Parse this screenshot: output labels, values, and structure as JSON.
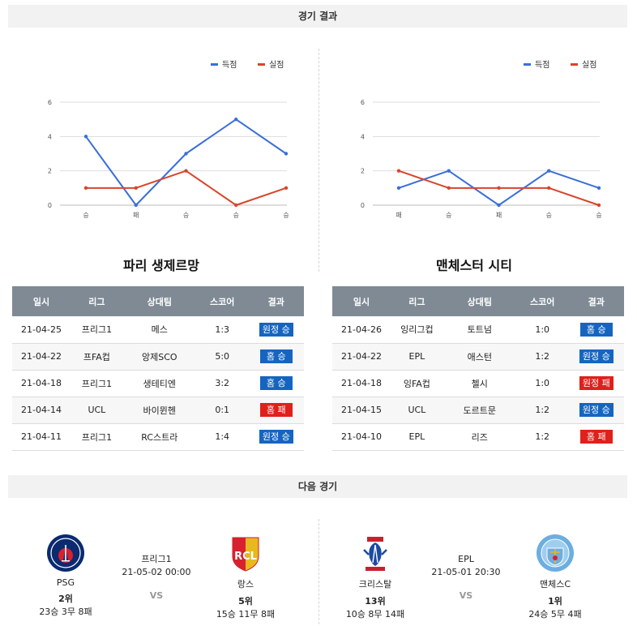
{
  "headers": {
    "results": "경기 결과",
    "next": "다음 경기"
  },
  "legend": {
    "scored": "득점",
    "conceded": "실점"
  },
  "colors": {
    "scored": "#3a6fd8",
    "conceded": "#d8452b",
    "home_win": "#1565c0",
    "away_win": "#1565c0",
    "loss": "#e0201b"
  },
  "teams": [
    {
      "name": "파리 생제르망",
      "columns": [
        "일시",
        "리그",
        "상대팀",
        "스코어",
        "결과"
      ],
      "matches": [
        {
          "date": "21-04-25",
          "league": "프리그1",
          "opponent": "메스",
          "score": "1:3",
          "result": "원정 승",
          "type": "away_win"
        },
        {
          "date": "21-04-22",
          "league": "프FA컵",
          "opponent": "앙제SCO",
          "score": "5:0",
          "result": "홈 승",
          "type": "home_win"
        },
        {
          "date": "21-04-18",
          "league": "프리그1",
          "opponent": "생테티엔",
          "score": "3:2",
          "result": "홈 승",
          "type": "home_win"
        },
        {
          "date": "21-04-14",
          "league": "UCL",
          "opponent": "바이뮌헨",
          "score": "0:1",
          "result": "홈 패",
          "type": "loss"
        },
        {
          "date": "21-04-11",
          "league": "프리그1",
          "opponent": "RC스트라",
          "score": "1:4",
          "result": "원정 승",
          "type": "away_win"
        }
      ]
    },
    {
      "name": "맨체스터 시티",
      "columns": [
        "일시",
        "리그",
        "상대팀",
        "스코어",
        "결과"
      ],
      "matches": [
        {
          "date": "21-04-26",
          "league": "잉리그컵",
          "opponent": "토트넘",
          "score": "1:0",
          "result": "홈 승",
          "type": "home_win"
        },
        {
          "date": "21-04-22",
          "league": "EPL",
          "opponent": "애스턴",
          "score": "1:2",
          "result": "원정 승",
          "type": "away_win"
        },
        {
          "date": "21-04-18",
          "league": "잉FA컵",
          "opponent": "첼시",
          "score": "1:0",
          "result": "원정 패",
          "type": "loss"
        },
        {
          "date": "21-04-15",
          "league": "UCL",
          "opponent": "도르트문",
          "score": "1:2",
          "result": "원정 승",
          "type": "away_win"
        },
        {
          "date": "21-04-10",
          "league": "EPL",
          "opponent": "리즈",
          "score": "1:2",
          "result": "홈 패",
          "type": "loss"
        }
      ]
    }
  ],
  "chart_data": [
    {
      "type": "line",
      "categories": [
        "승",
        "패",
        "승",
        "승",
        "승"
      ],
      "ylim": [
        0,
        6
      ],
      "yticks": [
        0,
        2,
        4,
        6
      ],
      "grid": true,
      "legend": "top-right",
      "series": [
        {
          "name": "득점",
          "values": [
            4,
            0,
            3,
            5,
            3
          ]
        },
        {
          "name": "실점",
          "values": [
            1,
            1,
            2,
            0,
            1
          ]
        }
      ]
    },
    {
      "type": "line",
      "categories": [
        "패",
        "승",
        "패",
        "승",
        "승"
      ],
      "ylim": [
        0,
        6
      ],
      "yticks": [
        0,
        2,
        4,
        6
      ],
      "grid": true,
      "legend": "top-right",
      "series": [
        {
          "name": "득점",
          "values": [
            1,
            2,
            0,
            2,
            1
          ]
        },
        {
          "name": "실점",
          "values": [
            2,
            1,
            1,
            1,
            0
          ]
        }
      ]
    }
  ],
  "next_matches": [
    {
      "league": "프리그1",
      "datetime": "21-05-02 00:00",
      "vs": "VS",
      "home": {
        "name": "PSG",
        "rank": "2위",
        "record": "23승 3무 8패",
        "logo": "psg-logo"
      },
      "away": {
        "name": "랑스",
        "rank": "5위",
        "record": "15승 11무 8패",
        "logo": "rc-lens-logo",
        "logo_text": "RCL"
      }
    },
    {
      "league": "EPL",
      "datetime": "21-05-01 20:30",
      "vs": "VS",
      "home": {
        "name": "크리스탈",
        "rank": "13위",
        "record": "10승 8무 14패",
        "logo": "crystal-palace-logo"
      },
      "away": {
        "name": "맨체스C",
        "rank": "1위",
        "record": "24승 5무 4패",
        "logo": "man-city-logo"
      }
    }
  ]
}
